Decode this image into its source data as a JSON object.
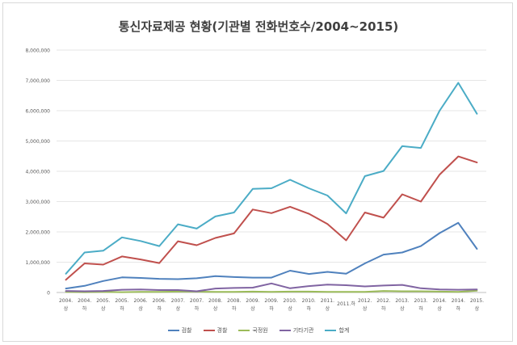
{
  "chart_data": {
    "type": "line",
    "title": "통신자료제공 현황(기관별 전화번호수/2004~2015)",
    "ylim": [
      0,
      8000000
    ],
    "yticks": [
      "0",
      "1,000,000",
      "2,000,000",
      "3,000,000",
      "4,000,000",
      "5,000,000",
      "6,000,000",
      "7,000,000",
      "8,000,000"
    ],
    "grid": true,
    "legend_position": "bottom",
    "categories": [
      [
        "2004.",
        "상"
      ],
      [
        "2004.",
        "하"
      ],
      [
        "2005.",
        "상"
      ],
      [
        "2005.",
        "하"
      ],
      [
        "2006.",
        "상"
      ],
      [
        "2006.",
        "하"
      ],
      [
        "2007.",
        "상"
      ],
      [
        "2007.",
        "하"
      ],
      [
        "2008.",
        "상"
      ],
      [
        "2008.",
        "하"
      ],
      [
        "2009.",
        "상"
      ],
      [
        "2009.",
        "하"
      ],
      [
        "2010.",
        "상"
      ],
      [
        "2010.",
        "하"
      ],
      [
        "2011.",
        "상"
      ],
      [
        "2011.하",
        ""
      ],
      [
        "2012.",
        "상"
      ],
      [
        "2012.",
        "하"
      ],
      [
        "2013.",
        "상"
      ],
      [
        "2013.",
        "하"
      ],
      [
        "2014.",
        "상"
      ],
      [
        "2014.",
        "하"
      ],
      [
        "2015.",
        "상"
      ]
    ],
    "series": [
      {
        "name": "검찰",
        "color": "#4f81bd",
        "values": [
          130000,
          220000,
          380000,
          500000,
          480000,
          450000,
          440000,
          470000,
          540000,
          510000,
          490000,
          490000,
          720000,
          610000,
          680000,
          620000,
          960000,
          1250000,
          1320000,
          1530000,
          1960000,
          2300000,
          1440000
        ]
      },
      {
        "name": "경찰",
        "color": "#c0504d",
        "values": [
          420000,
          960000,
          920000,
          1190000,
          1090000,
          970000,
          1690000,
          1560000,
          1800000,
          1950000,
          2740000,
          2620000,
          2830000,
          2600000,
          2260000,
          1720000,
          2640000,
          2470000,
          3240000,
          3000000,
          3890000,
          4490000,
          4290000
        ]
      },
      {
        "name": "국정원",
        "color": "#9bbb59",
        "values": [
          20000,
          10000,
          20000,
          10000,
          20000,
          20000,
          30000,
          30000,
          20000,
          20000,
          30000,
          20000,
          30000,
          30000,
          20000,
          20000,
          20000,
          50000,
          40000,
          40000,
          30000,
          20000,
          60000
        ]
      },
      {
        "name": "기타기관",
        "color": "#8064a2",
        "values": [
          50000,
          40000,
          50000,
          90000,
          100000,
          80000,
          80000,
          40000,
          130000,
          150000,
          160000,
          300000,
          140000,
          210000,
          260000,
          240000,
          200000,
          230000,
          250000,
          140000,
          100000,
          90000,
          100000
        ]
      },
      {
        "name": "합계",
        "color": "#4bacc6",
        "values": [
          620000,
          1320000,
          1380000,
          1820000,
          1700000,
          1530000,
          2250000,
          2110000,
          2510000,
          2640000,
          3420000,
          3440000,
          3720000,
          3440000,
          3200000,
          2610000,
          3840000,
          4010000,
          4830000,
          4770000,
          6000000,
          6920000,
          5900000
        ]
      }
    ]
  }
}
